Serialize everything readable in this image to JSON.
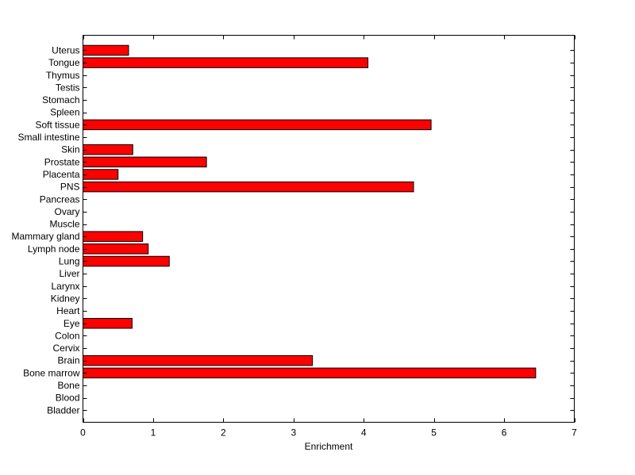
{
  "chart_data": {
    "type": "bar",
    "orientation": "horizontal",
    "categories": [
      "Bladder",
      "Blood",
      "Bone",
      "Bone marrow",
      "Brain",
      "Cervix",
      "Colon",
      "Eye",
      "Heart",
      "Kidney",
      "Larynx",
      "Liver",
      "Lung",
      "Lymph node",
      "Mammary gland",
      "Muscle",
      "Ovary",
      "Pancreas",
      "PNS",
      "Placenta",
      "Prostate",
      "Skin",
      "Small intestine",
      "Soft tissue",
      "Spleen",
      "Stomach",
      "Testis",
      "Thymus",
      "Tongue",
      "Uterus"
    ],
    "values": [
      0,
      0,
      0,
      6.45,
      3.27,
      0,
      0,
      0.7,
      0,
      0,
      0,
      0,
      1.23,
      0.93,
      0.85,
      0,
      0,
      0,
      4.71,
      0.5,
      1.76,
      0.71,
      0,
      4.96,
      0,
      0,
      0,
      0,
      4.06,
      0.65
    ],
    "title": "",
    "xlabel": "Enrichment",
    "ylabel": "",
    "xlim": [
      0,
      7
    ],
    "xticks": [
      0,
      1,
      2,
      3,
      4,
      5,
      6,
      7
    ],
    "grid": false,
    "bar_color": "#ff0000",
    "bar_edge_color": "#000000"
  }
}
